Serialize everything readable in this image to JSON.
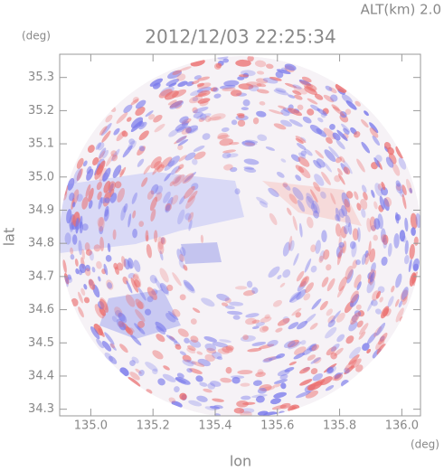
{
  "chart_data": {
    "type": "image",
    "annotation": "ALT(km) 2.0",
    "title": "2012/12/03 22:25:34",
    "y_unit": "(deg)",
    "x_unit": "(deg)",
    "y_label": "lat",
    "x_label": "lon",
    "xlim": [
      134.9,
      136.06
    ],
    "ylim": [
      34.28,
      35.37
    ],
    "xticks": [
      {
        "value": 135,
        "label": "135.0"
      },
      135.2,
      135.4,
      135.6,
      135.8,
      {
        "value": 136,
        "label": "136.0"
      }
    ],
    "yticks": [
      34.3,
      34.4,
      34.5,
      34.6,
      34.7,
      34.8,
      34.9,
      {
        "value": 35,
        "label": "35.0"
      },
      35.1,
      35.2,
      35.3
    ]
  }
}
